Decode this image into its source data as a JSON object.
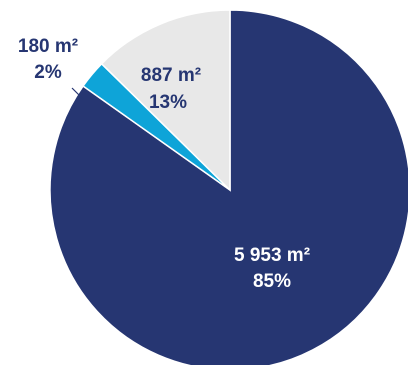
{
  "chart_data": {
    "type": "pie",
    "title": "",
    "slices": [
      {
        "area": "5 953 m²",
        "percent": "85%",
        "value": 5953,
        "color": "#263672",
        "label_color": "#ffffff"
      },
      {
        "area": "180 m²",
        "percent": "2%",
        "value": 180,
        "color": "#0ea4d8",
        "label_color": "#263672"
      },
      {
        "area": "887 m²",
        "percent": "13%",
        "value": 887,
        "color": "#e8e8e8",
        "label_color": "#263672"
      }
    ],
    "colors": {
      "background": "#ffffff",
      "separator": "#ffffff"
    }
  }
}
